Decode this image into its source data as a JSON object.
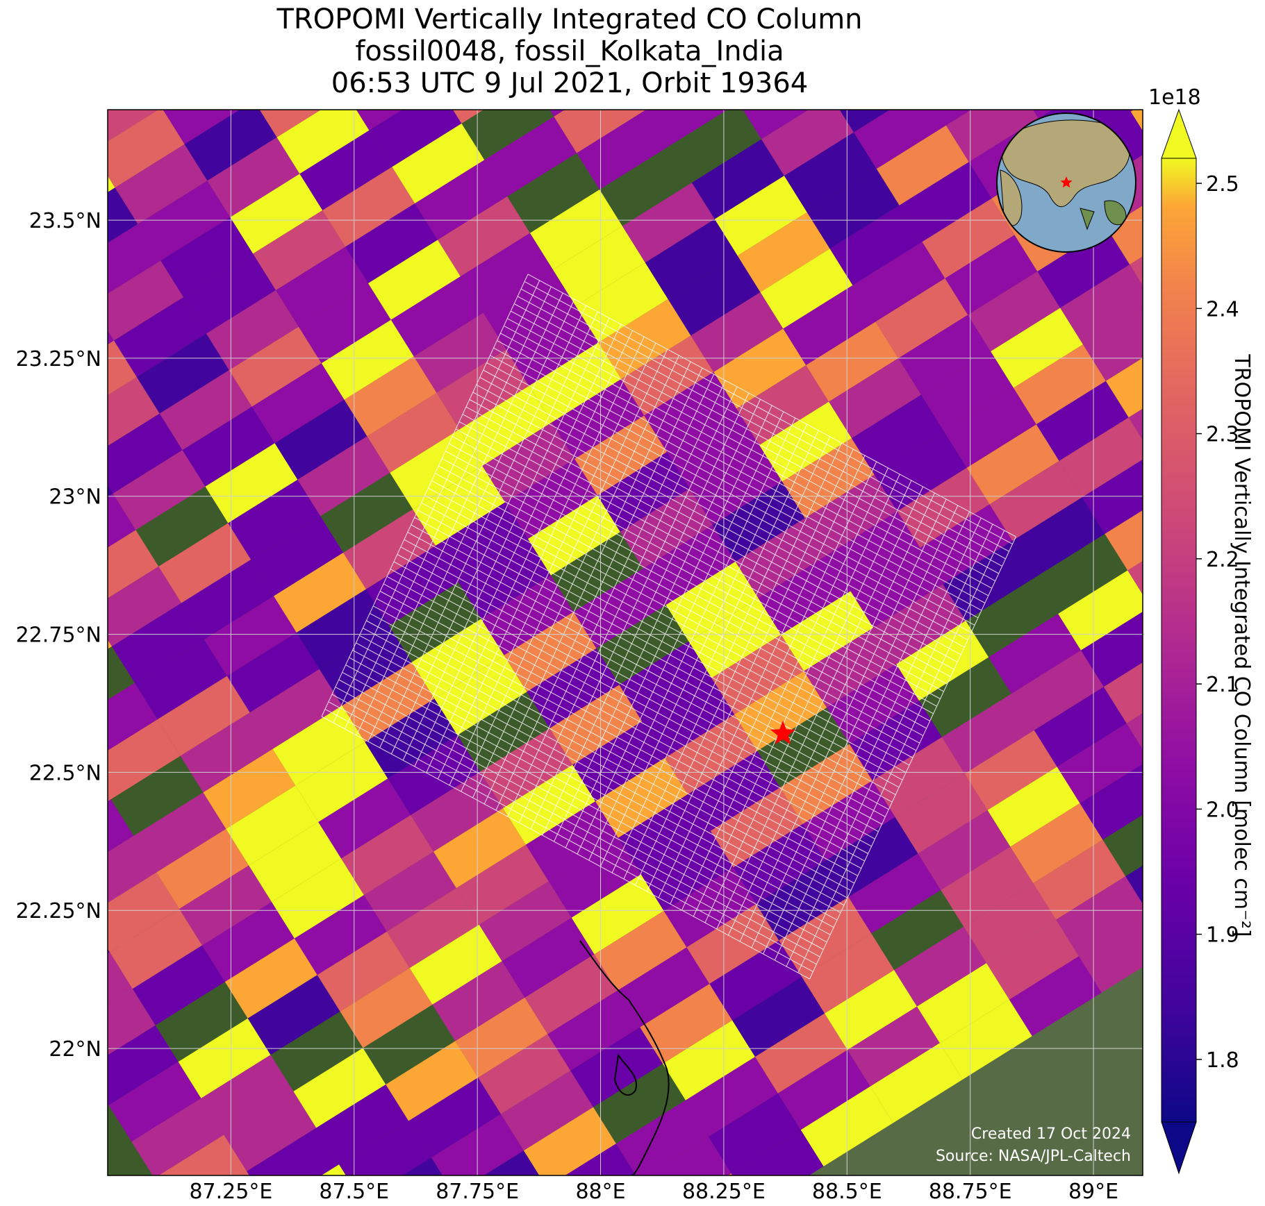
{
  "title": {
    "line1": "TROPOMI Vertically Integrated CO Column",
    "line2": "fossil0048, fossil_Kolkata_India",
    "line3": "06:53 UTC 9 Jul 2021, Orbit 19364"
  },
  "map": {
    "lon_range": [
      87.0,
      89.1
    ],
    "lat_range": [
      21.77,
      23.7
    ],
    "lon_ticks": [
      {
        "value": 87.25,
        "label": "87.25°E"
      },
      {
        "value": 87.5,
        "label": "87.5°E"
      },
      {
        "value": 87.75,
        "label": "87.75°E"
      },
      {
        "value": 88.0,
        "label": "88°E"
      },
      {
        "value": 88.25,
        "label": "88.25°E"
      },
      {
        "value": 88.5,
        "label": "88.5°E"
      },
      {
        "value": 88.75,
        "label": "88.75°E"
      },
      {
        "value": 89.0,
        "label": "89°E"
      }
    ],
    "lat_ticks": [
      {
        "value": 23.5,
        "label": "23.5°N"
      },
      {
        "value": 23.25,
        "label": "23.25°N"
      },
      {
        "value": 23.0,
        "label": "23°N"
      },
      {
        "value": 22.75,
        "label": "22.75°N"
      },
      {
        "value": 22.5,
        "label": "22.5°N"
      },
      {
        "value": 22.25,
        "label": "22.25°N"
      },
      {
        "value": 22.0,
        "label": "22°N"
      }
    ],
    "target": {
      "name": "fossil_Kolkata_India",
      "lon": 88.37,
      "lat": 22.57,
      "marker": "star",
      "color": "#ff0000"
    },
    "gridlines": true,
    "basemap": "satellite imagery",
    "overlay": "white footprint grid of city target-mode observations",
    "inset_globe": {
      "position": "top-right",
      "marker": "star",
      "marker_color": "#ff0000"
    }
  },
  "colorbar": {
    "exponent_label": "1e18",
    "label": "TROPOMI Vertically Integrated CO Column [molec cm⁻²]",
    "min": 1.75,
    "max": 2.52,
    "ticks": [
      {
        "value": 1.8,
        "label": "1.8"
      },
      {
        "value": 1.9,
        "label": "1.9"
      },
      {
        "value": 2.0,
        "label": "2.0"
      },
      {
        "value": 2.1,
        "label": "2.1"
      },
      {
        "value": 2.2,
        "label": "2.2"
      },
      {
        "value": 2.3,
        "label": "2.3"
      },
      {
        "value": 2.4,
        "label": "2.4"
      },
      {
        "value": 2.5,
        "label": "2.5"
      }
    ],
    "colormap": "plasma",
    "extend": "both"
  },
  "credits": {
    "created": "Created 17 Oct 2024",
    "source": "Source: NASA/JPL-Caltech"
  }
}
